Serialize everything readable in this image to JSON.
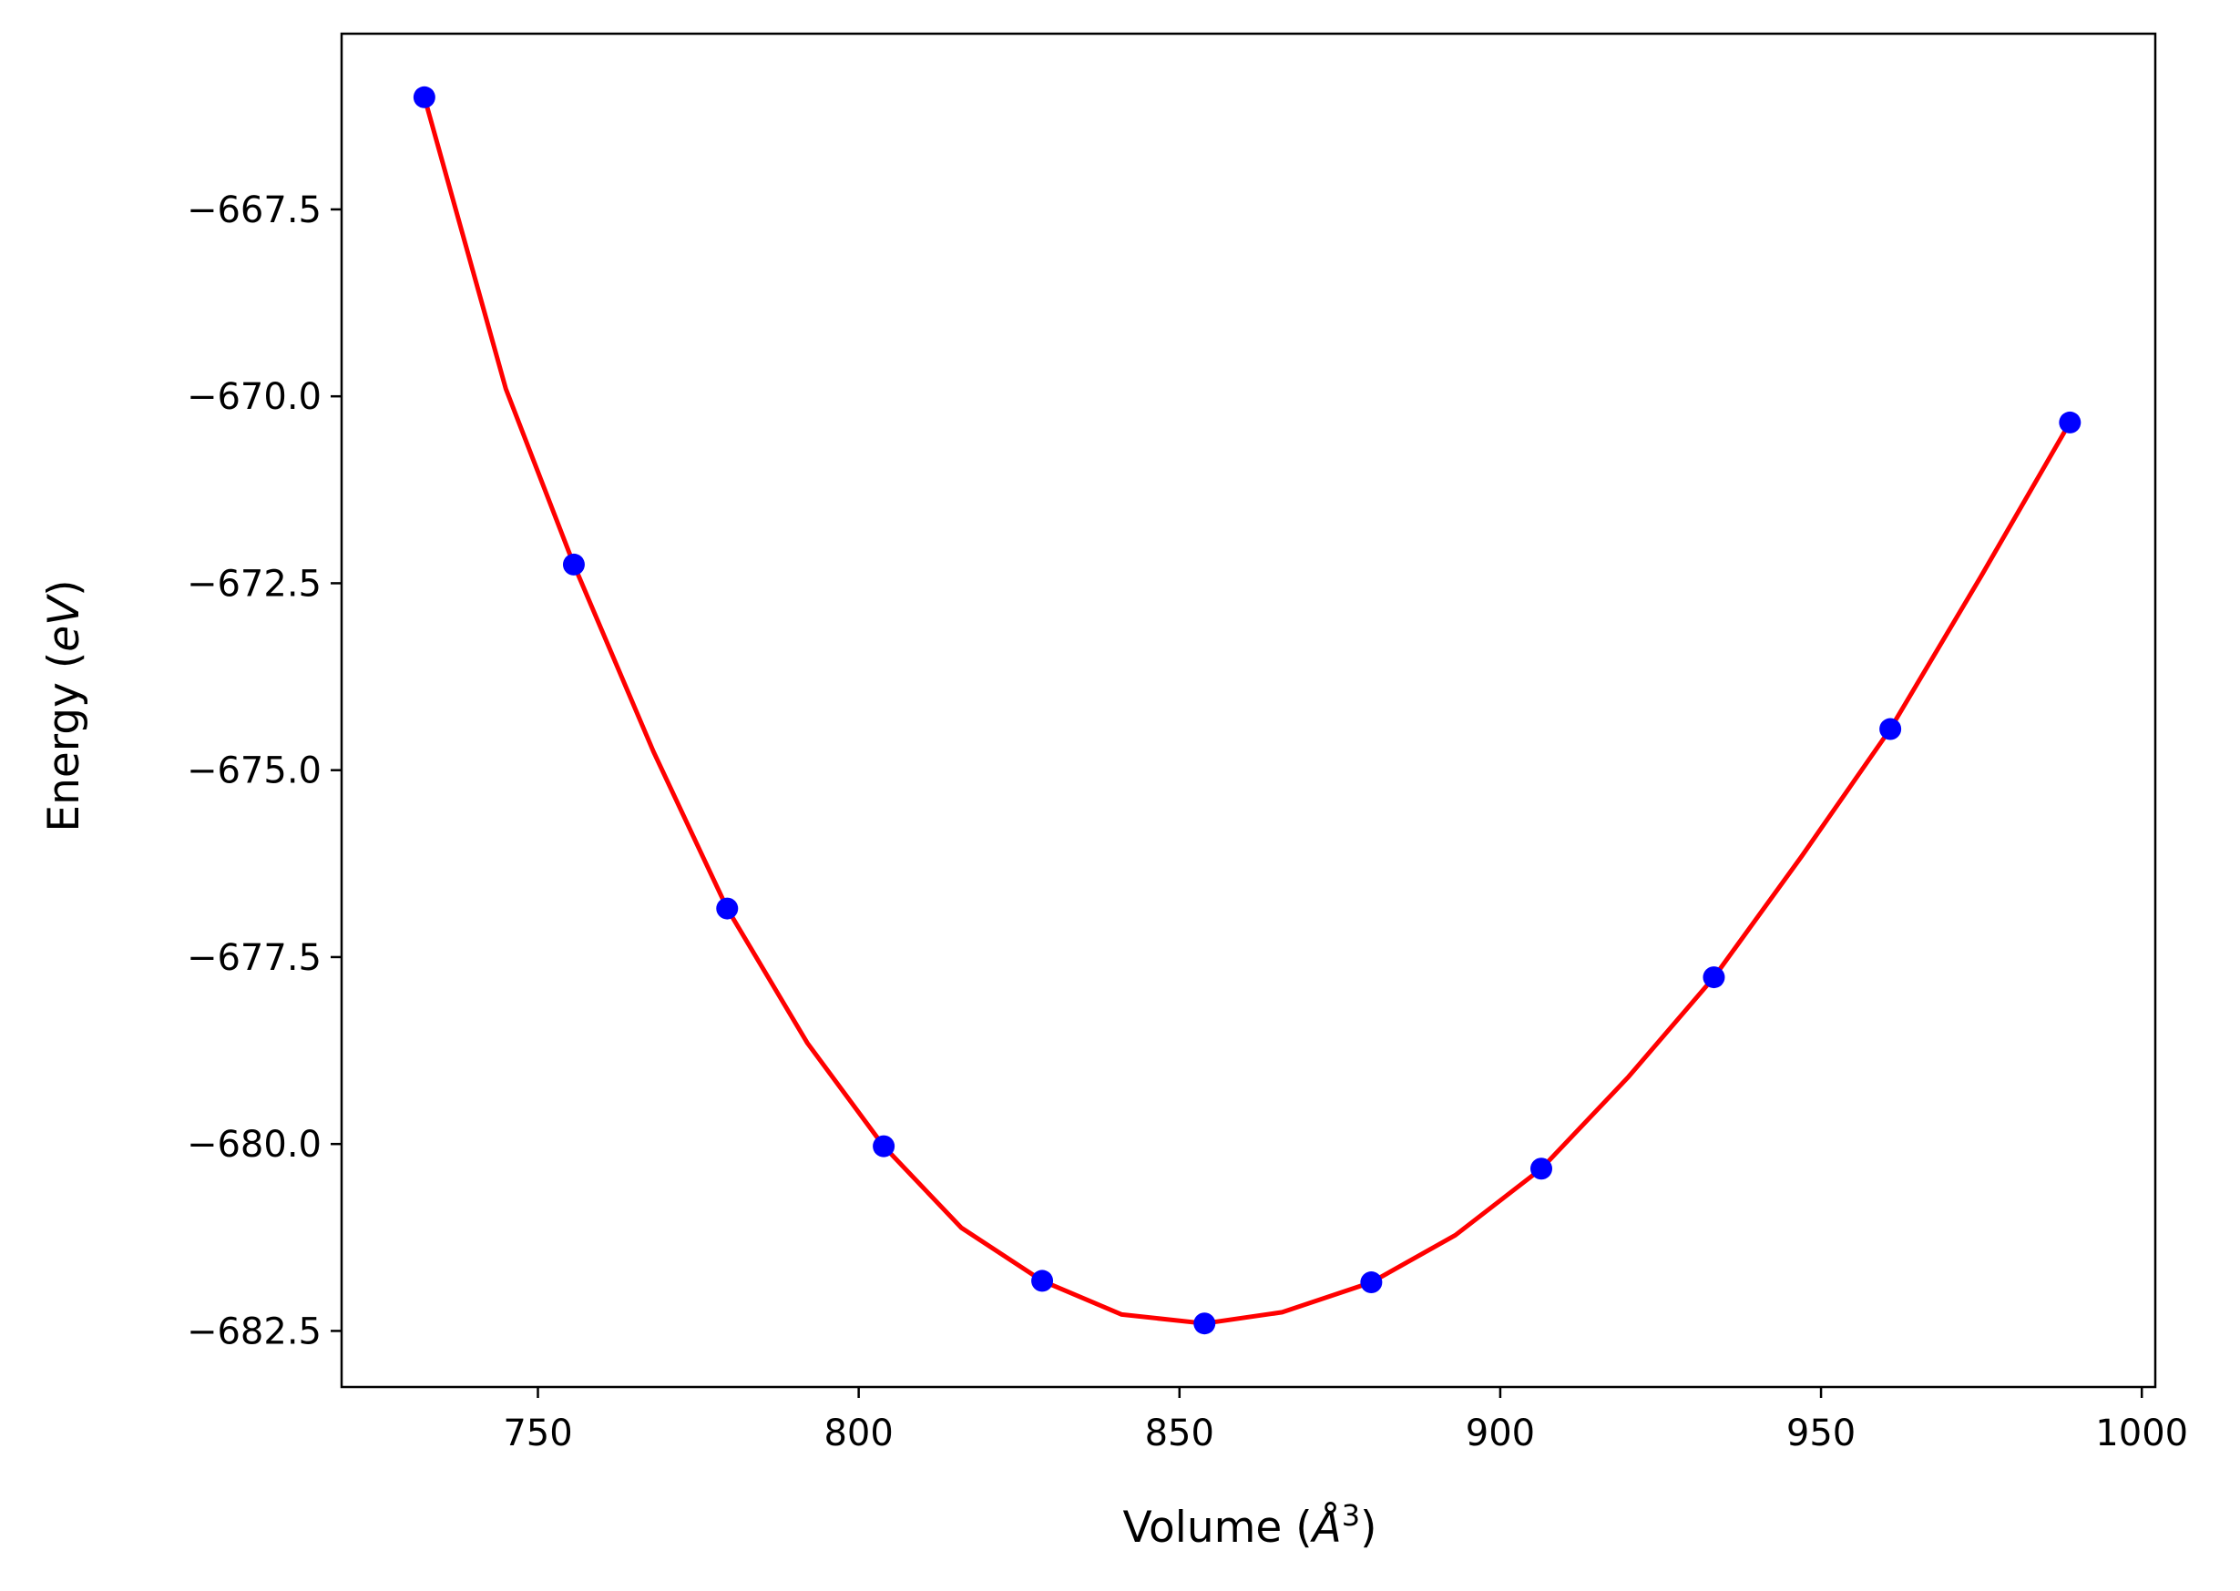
{
  "chart_data": {
    "type": "line",
    "xlabel_prefix": "Volume (",
    "xlabel_unit": "Å",
    "xlabel_exponent": "3",
    "xlabel_suffix": ")",
    "ylabel_prefix": "Energy (",
    "ylabel_unit": "eV",
    "ylabel_suffix": ")",
    "xlim": [
      719.4,
      1002.1
    ],
    "ylim": [
      -683.25,
      -665.15
    ],
    "xticks": [
      750,
      800,
      850,
      900,
      950,
      1000
    ],
    "xtick_labels": [
      "750",
      "800",
      "850",
      "900",
      "950",
      "1000"
    ],
    "yticks": [
      -667.5,
      -670.0,
      -672.5,
      -675.0,
      -677.5,
      -680.0,
      -682.5
    ],
    "ytick_labels": [
      "−667.5",
      "−670.0",
      "−672.5",
      "−675.0",
      "−677.5",
      "−680.0",
      "−682.5"
    ],
    "grid": false,
    "series": [
      {
        "kind": "fit-curve",
        "color": "#ff0000",
        "x": [
          732.3,
          745,
          755.6,
          768,
          779.5,
          792,
          803.9,
          816,
          828.6,
          841,
          853.9,
          866,
          879.9,
          893,
          906.4,
          920,
          933.3,
          947,
          960.8,
          975,
          988.8
        ],
        "y": [
          -666.0,
          -669.9,
          -672.25,
          -674.75,
          -676.85,
          -678.65,
          -680.03,
          -681.12,
          -681.83,
          -682.28,
          -682.4,
          -682.25,
          -681.85,
          -681.22,
          -680.33,
          -679.1,
          -677.77,
          -676.15,
          -674.45,
          -672.4,
          -670.35
        ]
      },
      {
        "kind": "data-points",
        "color": "#0000ff",
        "x": [
          732.3,
          755.6,
          779.5,
          803.9,
          828.6,
          853.9,
          879.9,
          906.4,
          933.3,
          960.8,
          988.8
        ],
        "y": [
          -666.0,
          -672.25,
          -676.85,
          -680.03,
          -681.83,
          -682.4,
          -681.85,
          -680.33,
          -677.77,
          -674.45,
          -670.35
        ]
      }
    ]
  }
}
